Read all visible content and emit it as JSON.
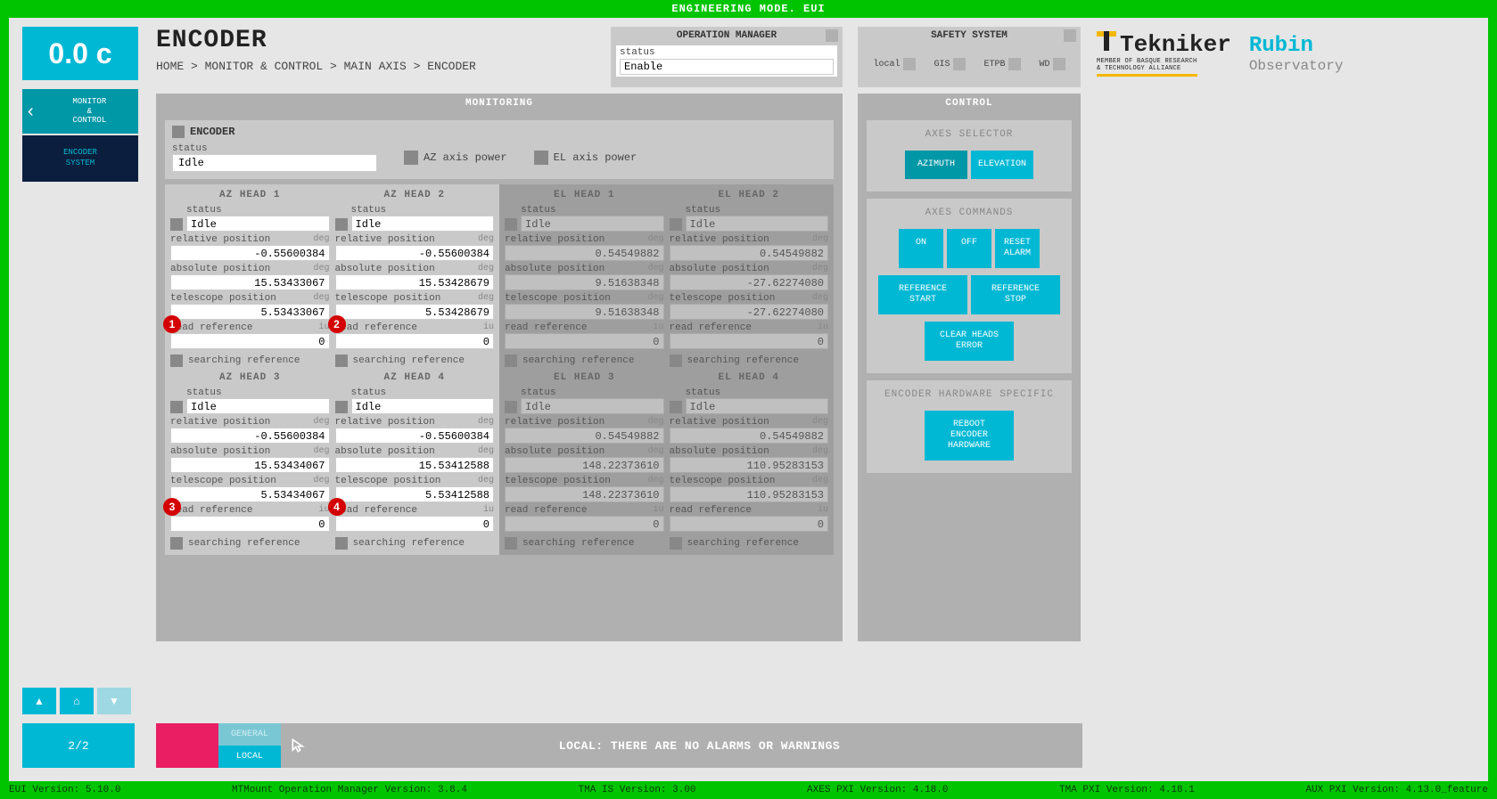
{
  "top_banner": "ENGINEERING MODE. EUI",
  "clock": "0.0 c",
  "nav": {
    "back_label": "MONITOR\n&\nCONTROL",
    "current_label": "ENCODER\nSYSTEM",
    "page": "2/2"
  },
  "title": "ENCODER",
  "breadcrumb": "HOME > MONITOR & CONTROL > MAIN AXIS > ENCODER",
  "opman": {
    "header": "OPERATION MANAGER",
    "status_label": "status",
    "status_value": "Enable"
  },
  "safety": {
    "header": "SAFETY SYSTEM",
    "inds": [
      {
        "label": "local"
      },
      {
        "label": "GIS"
      },
      {
        "label": "ETPB"
      },
      {
        "label": "WD"
      }
    ]
  },
  "logos": {
    "tekniker": "Tekniker",
    "tekniker_sub": "MEMBER OF BASQUE RESEARCH\n& TECHNOLOGY ALLIANCE",
    "rubin1": "Rubin",
    "rubin2": "Observatory"
  },
  "monitor": {
    "header": "MONITORING",
    "encoder_label": "ENCODER",
    "status_label": "status",
    "status_value": "Idle",
    "az_power": "AZ axis power",
    "el_power": "EL axis power"
  },
  "head_labels": {
    "status": "status",
    "relpos": "relative position",
    "abspos": "absolute position",
    "telpos": "telescope position",
    "readref": "read reference",
    "srch": "searching reference",
    "deg": "deg",
    "iu": "iu"
  },
  "heads": {
    "az": [
      {
        "name": "AZ HEAD 1",
        "status": "Idle",
        "rel": "-0.55600384",
        "abs": "15.53433067",
        "tel": "5.53433067",
        "ref": "0",
        "badge": "1"
      },
      {
        "name": "AZ HEAD 2",
        "status": "Idle",
        "rel": "-0.55600384",
        "abs": "15.53428679",
        "tel": "5.53428679",
        "ref": "0",
        "badge": "2"
      },
      {
        "name": "AZ HEAD 3",
        "status": "Idle",
        "rel": "-0.55600384",
        "abs": "15.53434067",
        "tel": "5.53434067",
        "ref": "0",
        "badge": "3"
      },
      {
        "name": "AZ HEAD 4",
        "status": "Idle",
        "rel": "-0.55600384",
        "abs": "15.53412588",
        "tel": "5.53412588",
        "ref": "0",
        "badge": "4"
      }
    ],
    "el": [
      {
        "name": "EL HEAD 1",
        "status": "Idle",
        "rel": "0.54549882",
        "abs": "9.51638348",
        "tel": "9.51638348",
        "ref": "0"
      },
      {
        "name": "EL HEAD 2",
        "status": "Idle",
        "rel": "0.54549882",
        "abs": "-27.62274080",
        "tel": "-27.62274080",
        "ref": "0"
      },
      {
        "name": "EL HEAD 3",
        "status": "Idle",
        "rel": "0.54549882",
        "abs": "148.22373610",
        "tel": "148.22373610",
        "ref": "0"
      },
      {
        "name": "EL HEAD 4",
        "status": "Idle",
        "rel": "0.54549882",
        "abs": "110.95283153",
        "tel": "110.95283153",
        "ref": "0"
      }
    ]
  },
  "control": {
    "header": "CONTROL",
    "sec1_title": "AXES SELECTOR",
    "azimuth": "AZIMUTH",
    "elevation": "ELEVATION",
    "sec2_title": "AXES COMMANDS",
    "on": "ON",
    "off": "OFF",
    "reset": "RESET\nALARM",
    "ref_start": "REFERENCE\nSTART",
    "ref_stop": "REFERENCE\nSTOP",
    "clear": "CLEAR HEADS\nERROR",
    "sec3_title": "ENCODER HARDWARE SPECIFIC",
    "reboot": "REBOOT\nENCODER\nHARDWARE"
  },
  "statusbar": {
    "general": "GENERAL",
    "local": "LOCAL",
    "msg": "LOCAL: THERE ARE NO ALARMS OR WARNINGS"
  },
  "footer": {
    "eui": "EUI Version: 5.10.0",
    "mtm": "MTMount Operation Manager Version: 3.8.4",
    "tmais": "TMA IS Version: 3.00",
    "axes": "AXES PXI Version: 4.18.0",
    "tma": "TMA PXI Version: 4.18.1",
    "aux": "AUX PXI Version: 4.13.0_feature"
  },
  "colors": {
    "banner_green": "#00c400",
    "accent": "#00b8d4",
    "accent_dark": "#0097a7",
    "navy": "#0b1e3d",
    "pink": "#e91e63",
    "panel": "#b0b0b0",
    "panel_light": "#c9c9c9",
    "inactive": "#9e9e9e",
    "badge": "#d40000"
  }
}
